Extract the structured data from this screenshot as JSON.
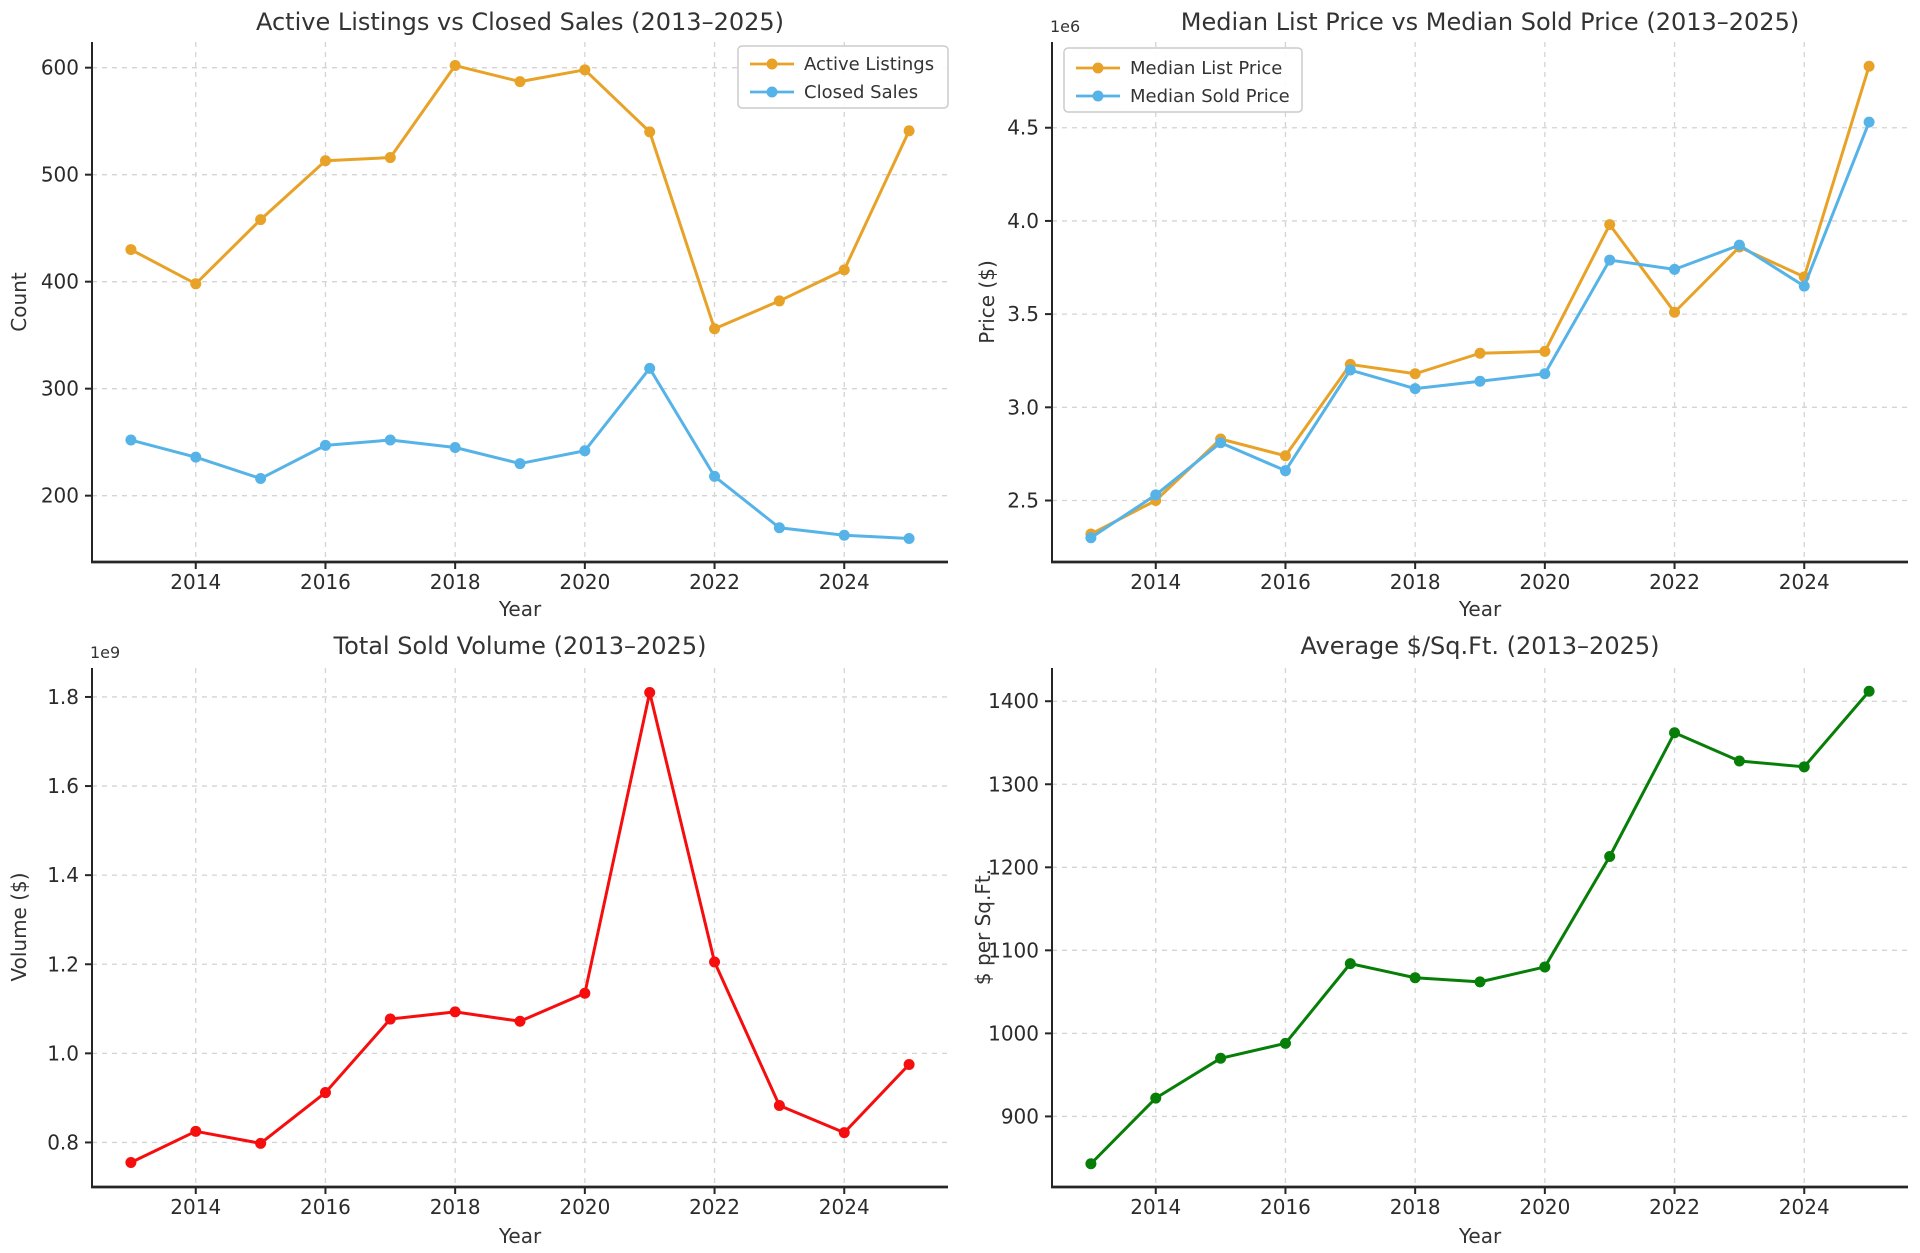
{
  "figure": {
    "background": "#ffffff",
    "grid_color": "#d4d4d4",
    "spine_color": "#262626",
    "years_x_label": "Year"
  },
  "chart_data": [
    {
      "id": "active-listings-vs-closed-sales",
      "type": "line",
      "title": "Active Listings vs Closed Sales (2013–2025)",
      "xlabel": "Year",
      "ylabel": "Count",
      "x": [
        2013,
        2014,
        2015,
        2016,
        2017,
        2018,
        2019,
        2020,
        2021,
        2022,
        2023,
        2024,
        2025
      ],
      "series": [
        {
          "name": "Active Listings",
          "color": "#e8a227",
          "values": [
            430,
            398,
            458,
            513,
            516,
            602,
            587,
            598,
            540,
            356,
            382,
            411,
            541
          ]
        },
        {
          "name": "Closed Sales",
          "color": "#56b3e8",
          "values": [
            252,
            236,
            216,
            247,
            252,
            245,
            230,
            242,
            319,
            218,
            170,
            163,
            160
          ]
        }
      ],
      "xlim": [
        2012.4,
        2025.6
      ],
      "ylim": [
        138,
        624
      ],
      "xticks": {
        "values": [
          2014,
          2016,
          2018,
          2020,
          2022,
          2024
        ],
        "labels": [
          "2014",
          "2016",
          "2018",
          "2020",
          "2022",
          "2024"
        ]
      },
      "yticks": {
        "values": [
          200,
          300,
          400,
          500,
          600
        ],
        "labels": [
          "200",
          "300",
          "400",
          "500",
          "600"
        ]
      },
      "legend_position": "upper right",
      "grid": true
    },
    {
      "id": "median-list-vs-sold-price",
      "type": "line",
      "title": "Median List Price vs Median Sold Price (2013–2025)",
      "xlabel": "Year",
      "ylabel": "Price ($)",
      "offset_label": "1e6",
      "x": [
        2013,
        2014,
        2015,
        2016,
        2017,
        2018,
        2019,
        2020,
        2021,
        2022,
        2023,
        2024,
        2025
      ],
      "series": [
        {
          "name": "Median List Price",
          "color": "#e8a227",
          "values": [
            2320000,
            2500000,
            2830000,
            2740000,
            3230000,
            3180000,
            3290000,
            3300000,
            3980000,
            3510000,
            3860000,
            3700000,
            4830000
          ]
        },
        {
          "name": "Median Sold Price",
          "color": "#56b3e8",
          "values": [
            2300000,
            2530000,
            2810000,
            2660000,
            3200000,
            3100000,
            3140000,
            3180000,
            3790000,
            3740000,
            3870000,
            3650000,
            4530000
          ]
        }
      ],
      "xlim": [
        2012.4,
        2025.6
      ],
      "ylim": [
        2170000,
        4960000
      ],
      "xticks": {
        "values": [
          2014,
          2016,
          2018,
          2020,
          2022,
          2024
        ],
        "labels": [
          "2014",
          "2016",
          "2018",
          "2020",
          "2022",
          "2024"
        ]
      },
      "yticks": {
        "values": [
          2500000,
          3000000,
          3500000,
          4000000,
          4500000
        ],
        "labels": [
          "2.5",
          "3.0",
          "3.5",
          "4.0",
          "4.5"
        ]
      },
      "legend_position": "upper left",
      "grid": true
    },
    {
      "id": "total-sold-volume",
      "type": "line",
      "title": "Total Sold Volume (2013–2025)",
      "xlabel": "Year",
      "ylabel": "Volume ($)",
      "offset_label": "1e9",
      "x": [
        2013,
        2014,
        2015,
        2016,
        2017,
        2018,
        2019,
        2020,
        2021,
        2022,
        2023,
        2024,
        2025
      ],
      "series": [
        {
          "name": "Total Sold Volume",
          "color": "#f60d0d",
          "values": [
            755000000,
            825000000,
            798000000,
            912000000,
            1077000000,
            1093000000,
            1072000000,
            1135000000,
            1810000000,
            1205000000,
            883000000,
            822000000,
            975000000
          ]
        }
      ],
      "xlim": [
        2012.4,
        2025.6
      ],
      "ylim": [
        700000000,
        1865000000
      ],
      "xticks": {
        "values": [
          2014,
          2016,
          2018,
          2020,
          2022,
          2024
        ],
        "labels": [
          "2014",
          "2016",
          "2018",
          "2020",
          "2022",
          "2024"
        ]
      },
      "yticks": {
        "values": [
          800000000,
          1000000000,
          1200000000,
          1400000000,
          1600000000,
          1800000000
        ],
        "labels": [
          "0.8",
          "1.0",
          "1.2",
          "1.4",
          "1.6",
          "1.8"
        ]
      },
      "legend_position": "none",
      "grid": true
    },
    {
      "id": "average-price-per-sqft",
      "type": "line",
      "title": "Average $/Sq.Ft. (2013–2025)",
      "xlabel": "Year",
      "ylabel": "$ per Sq.Ft.",
      "x": [
        2013,
        2014,
        2015,
        2016,
        2017,
        2018,
        2019,
        2020,
        2021,
        2022,
        2023,
        2024,
        2025
      ],
      "series": [
        {
          "name": "Average $/Sq.Ft.",
          "color": "#077e07",
          "values": [
            843,
            922,
            970,
            988,
            1084,
            1067,
            1062,
            1080,
            1213,
            1362,
            1328,
            1321,
            1412
          ]
        }
      ],
      "xlim": [
        2012.4,
        2025.6
      ],
      "ylim": [
        815,
        1440
      ],
      "xticks": {
        "values": [
          2014,
          2016,
          2018,
          2020,
          2022,
          2024
        ],
        "labels": [
          "2014",
          "2016",
          "2018",
          "2020",
          "2022",
          "2024"
        ]
      },
      "yticks": {
        "values": [
          900,
          1000,
          1100,
          1200,
          1300,
          1400
        ],
        "labels": [
          "900",
          "1000",
          "1100",
          "1200",
          "1300",
          "1400"
        ]
      },
      "legend_position": "none",
      "grid": true
    }
  ]
}
